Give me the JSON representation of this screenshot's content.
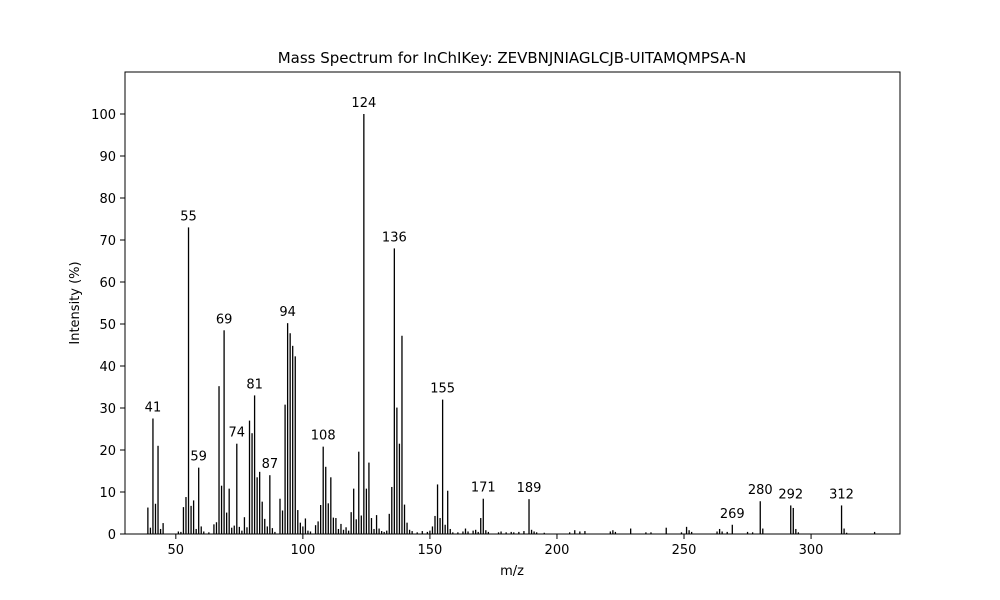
{
  "chart_data": {
    "type": "bar",
    "title": "Mass Spectrum for InChIKey: ZEVBNJNIAGLCJB-UITAMQMPSA-N",
    "xlabel": "m/z",
    "ylabel": "Intensity (%)",
    "xlim": [
      30,
      335
    ],
    "ylim": [
      0,
      110
    ],
    "xticks": [
      50,
      100,
      150,
      200,
      250,
      300
    ],
    "yticks": [
      0,
      10,
      20,
      30,
      40,
      50,
      60,
      70,
      80,
      90,
      100
    ],
    "grid": false,
    "bar_color": "#000000",
    "peaks": [
      {
        "mz": 39,
        "intensity": 6.3
      },
      {
        "mz": 40,
        "intensity": 1.5
      },
      {
        "mz": 41,
        "intensity": 27.5,
        "label": "41"
      },
      {
        "mz": 42,
        "intensity": 7.2
      },
      {
        "mz": 43,
        "intensity": 21
      },
      {
        "mz": 44,
        "intensity": 1.2
      },
      {
        "mz": 45,
        "intensity": 2.6
      },
      {
        "mz": 51,
        "intensity": 0.6
      },
      {
        "mz": 52,
        "intensity": 0.5
      },
      {
        "mz": 53,
        "intensity": 6.4
      },
      {
        "mz": 54,
        "intensity": 8.8
      },
      {
        "mz": 55,
        "intensity": 73,
        "label": "55"
      },
      {
        "mz": 56,
        "intensity": 6.7
      },
      {
        "mz": 57,
        "intensity": 8
      },
      {
        "mz": 58,
        "intensity": 1.2
      },
      {
        "mz": 59,
        "intensity": 15.8,
        "label": "59"
      },
      {
        "mz": 60,
        "intensity": 1.8
      },
      {
        "mz": 61,
        "intensity": 0.6
      },
      {
        "mz": 63,
        "intensity": 0.4
      },
      {
        "mz": 65,
        "intensity": 2.3
      },
      {
        "mz": 66,
        "intensity": 2.8
      },
      {
        "mz": 67,
        "intensity": 35.2
      },
      {
        "mz": 68,
        "intensity": 11.5
      },
      {
        "mz": 69,
        "intensity": 48.5,
        "label": "69"
      },
      {
        "mz": 70,
        "intensity": 5.1
      },
      {
        "mz": 71,
        "intensity": 10.8
      },
      {
        "mz": 72,
        "intensity": 1.5
      },
      {
        "mz": 73,
        "intensity": 2
      },
      {
        "mz": 74,
        "intensity": 21.5,
        "label": "74"
      },
      {
        "mz": 75,
        "intensity": 1.7
      },
      {
        "mz": 76,
        "intensity": 0.8
      },
      {
        "mz": 77,
        "intensity": 4
      },
      {
        "mz": 78,
        "intensity": 1.6
      },
      {
        "mz": 79,
        "intensity": 27
      },
      {
        "mz": 80,
        "intensity": 24
      },
      {
        "mz": 81,
        "intensity": 33,
        "label": "81"
      },
      {
        "mz": 82,
        "intensity": 13.5
      },
      {
        "mz": 83,
        "intensity": 14.8
      },
      {
        "mz": 84,
        "intensity": 7.7
      },
      {
        "mz": 85,
        "intensity": 3.6
      },
      {
        "mz": 86,
        "intensity": 1.8
      },
      {
        "mz": 87,
        "intensity": 14,
        "label": "87"
      },
      {
        "mz": 88,
        "intensity": 1.4
      },
      {
        "mz": 89,
        "intensity": 0.5
      },
      {
        "mz": 91,
        "intensity": 8.4
      },
      {
        "mz": 92,
        "intensity": 5.6
      },
      {
        "mz": 93,
        "intensity": 30.8
      },
      {
        "mz": 94,
        "intensity": 50.2,
        "label": "94"
      },
      {
        "mz": 95,
        "intensity": 47.8
      },
      {
        "mz": 96,
        "intensity": 44.8
      },
      {
        "mz": 97,
        "intensity": 42.3
      },
      {
        "mz": 98,
        "intensity": 5.7
      },
      {
        "mz": 99,
        "intensity": 2.7
      },
      {
        "mz": 100,
        "intensity": 1.8
      },
      {
        "mz": 101,
        "intensity": 3.7
      },
      {
        "mz": 102,
        "intensity": 0.8
      },
      {
        "mz": 103,
        "intensity": 0.6
      },
      {
        "mz": 105,
        "intensity": 2.1
      },
      {
        "mz": 106,
        "intensity": 3
      },
      {
        "mz": 107,
        "intensity": 6.9
      },
      {
        "mz": 108,
        "intensity": 20.8,
        "label": "108"
      },
      {
        "mz": 109,
        "intensity": 16
      },
      {
        "mz": 110,
        "intensity": 7.3
      },
      {
        "mz": 111,
        "intensity": 13.5
      },
      {
        "mz": 112,
        "intensity": 3.9
      },
      {
        "mz": 113,
        "intensity": 3.8
      },
      {
        "mz": 114,
        "intensity": 1.2
      },
      {
        "mz": 115,
        "intensity": 2.4
      },
      {
        "mz": 116,
        "intensity": 1
      },
      {
        "mz": 117,
        "intensity": 1.6
      },
      {
        "mz": 118,
        "intensity": 0.8
      },
      {
        "mz": 119,
        "intensity": 5.2
      },
      {
        "mz": 120,
        "intensity": 10.8
      },
      {
        "mz": 121,
        "intensity": 3.5
      },
      {
        "mz": 122,
        "intensity": 19.6
      },
      {
        "mz": 123,
        "intensity": 4.4
      },
      {
        "mz": 124,
        "intensity": 100,
        "label": "124"
      },
      {
        "mz": 125,
        "intensity": 10.8
      },
      {
        "mz": 126,
        "intensity": 17
      },
      {
        "mz": 127,
        "intensity": 3.8
      },
      {
        "mz": 128,
        "intensity": 1.2
      },
      {
        "mz": 129,
        "intensity": 4.5
      },
      {
        "mz": 130,
        "intensity": 1.3
      },
      {
        "mz": 131,
        "intensity": 0.7
      },
      {
        "mz": 132,
        "intensity": 0.5
      },
      {
        "mz": 133,
        "intensity": 0.8
      },
      {
        "mz": 134,
        "intensity": 4.8
      },
      {
        "mz": 135,
        "intensity": 11.2
      },
      {
        "mz": 136,
        "intensity": 68,
        "label": "136"
      },
      {
        "mz": 137,
        "intensity": 30.1
      },
      {
        "mz": 138,
        "intensity": 21.5
      },
      {
        "mz": 139,
        "intensity": 47.2
      },
      {
        "mz": 140,
        "intensity": 7
      },
      {
        "mz": 141,
        "intensity": 2.7
      },
      {
        "mz": 142,
        "intensity": 1
      },
      {
        "mz": 143,
        "intensity": 0.7
      },
      {
        "mz": 145,
        "intensity": 0.4
      },
      {
        "mz": 147,
        "intensity": 0.7
      },
      {
        "mz": 149,
        "intensity": 0.5
      },
      {
        "mz": 150,
        "intensity": 0.8
      },
      {
        "mz": 151,
        "intensity": 1.8
      },
      {
        "mz": 152,
        "intensity": 4.3
      },
      {
        "mz": 153,
        "intensity": 11.8
      },
      {
        "mz": 154,
        "intensity": 3.8
      },
      {
        "mz": 155,
        "intensity": 32,
        "label": "155"
      },
      {
        "mz": 156,
        "intensity": 2.2
      },
      {
        "mz": 157,
        "intensity": 10.3
      },
      {
        "mz": 158,
        "intensity": 1.2
      },
      {
        "mz": 159,
        "intensity": 0.4
      },
      {
        "mz": 161,
        "intensity": 0.4
      },
      {
        "mz": 163,
        "intensity": 0.6
      },
      {
        "mz": 164,
        "intensity": 1.3
      },
      {
        "mz": 165,
        "intensity": 0.6
      },
      {
        "mz": 167,
        "intensity": 0.8
      },
      {
        "mz": 168,
        "intensity": 1
      },
      {
        "mz": 169,
        "intensity": 0.5
      },
      {
        "mz": 170,
        "intensity": 3.8
      },
      {
        "mz": 171,
        "intensity": 8.4,
        "label": "171"
      },
      {
        "mz": 172,
        "intensity": 0.9
      },
      {
        "mz": 173,
        "intensity": 0.5
      },
      {
        "mz": 177,
        "intensity": 0.4
      },
      {
        "mz": 178,
        "intensity": 0.6
      },
      {
        "mz": 180,
        "intensity": 0.4
      },
      {
        "mz": 182,
        "intensity": 0.5
      },
      {
        "mz": 183,
        "intensity": 0.4
      },
      {
        "mz": 185,
        "intensity": 0.5
      },
      {
        "mz": 187,
        "intensity": 0.7
      },
      {
        "mz": 189,
        "intensity": 8.3,
        "label": "189"
      },
      {
        "mz": 190,
        "intensity": 1
      },
      {
        "mz": 191,
        "intensity": 0.6
      },
      {
        "mz": 192,
        "intensity": 0.4
      },
      {
        "mz": 195,
        "intensity": 0.3
      },
      {
        "mz": 205,
        "intensity": 0.4
      },
      {
        "mz": 207,
        "intensity": 0.9
      },
      {
        "mz": 209,
        "intensity": 0.6
      },
      {
        "mz": 211,
        "intensity": 0.7
      },
      {
        "mz": 221,
        "intensity": 0.6
      },
      {
        "mz": 222,
        "intensity": 0.9
      },
      {
        "mz": 223,
        "intensity": 0.5
      },
      {
        "mz": 229,
        "intensity": 1.3
      },
      {
        "mz": 235,
        "intensity": 0.4
      },
      {
        "mz": 237,
        "intensity": 0.4
      },
      {
        "mz": 243,
        "intensity": 1.5
      },
      {
        "mz": 249,
        "intensity": 0.4
      },
      {
        "mz": 251,
        "intensity": 1.7
      },
      {
        "mz": 252,
        "intensity": 0.9
      },
      {
        "mz": 253,
        "intensity": 0.5
      },
      {
        "mz": 263,
        "intensity": 0.6
      },
      {
        "mz": 264,
        "intensity": 1.2
      },
      {
        "mz": 265,
        "intensity": 0.6
      },
      {
        "mz": 267,
        "intensity": 0.5
      },
      {
        "mz": 269,
        "intensity": 2.2,
        "label": "269"
      },
      {
        "mz": 275,
        "intensity": 0.5
      },
      {
        "mz": 277,
        "intensity": 0.4
      },
      {
        "mz": 280,
        "intensity": 7.8,
        "label": "280"
      },
      {
        "mz": 281,
        "intensity": 1.3
      },
      {
        "mz": 292,
        "intensity": 6.8,
        "label": "292"
      },
      {
        "mz": 293,
        "intensity": 6.2
      },
      {
        "mz": 294,
        "intensity": 1.2
      },
      {
        "mz": 295,
        "intensity": 0.4
      },
      {
        "mz": 312,
        "intensity": 6.8,
        "label": "312"
      },
      {
        "mz": 313,
        "intensity": 1.3
      },
      {
        "mz": 314,
        "intensity": 0.3
      },
      {
        "mz": 325,
        "intensity": 0.5
      }
    ]
  }
}
